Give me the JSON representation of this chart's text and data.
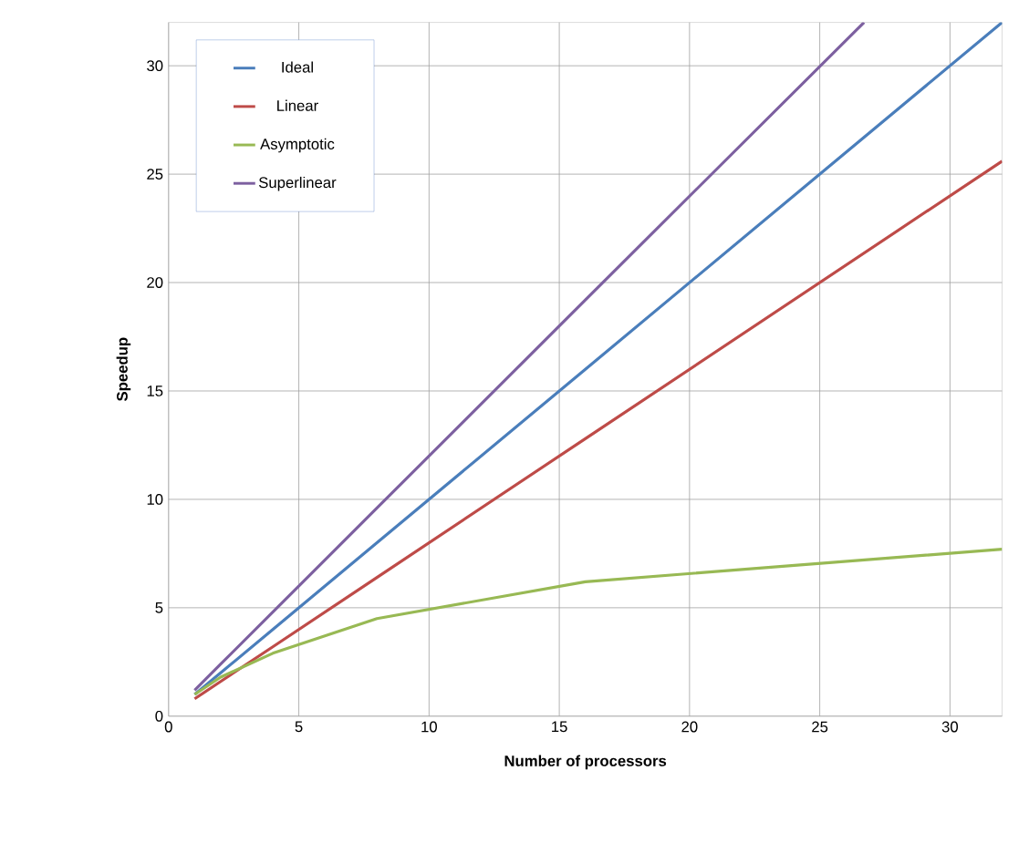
{
  "chart_data": {
    "type": "line",
    "xlabel": "Number of processors",
    "ylabel": "Speedup",
    "xlim": [
      0,
      32
    ],
    "ylim": [
      0,
      32
    ],
    "xticks": [
      0,
      5,
      10,
      15,
      20,
      25,
      30
    ],
    "yticks": [
      0,
      5,
      10,
      15,
      20,
      25,
      30
    ],
    "grid": true,
    "legend": "top left",
    "marker": "none",
    "line_style": "solid",
    "series": [
      {
        "name": "Ideal",
        "color": "#4a7ebb",
        "x": [
          1,
          2,
          4,
          8,
          16,
          32
        ],
        "values": [
          1,
          2,
          4,
          8,
          16,
          32
        ]
      },
      {
        "name": "Linear",
        "color": "#be4b48",
        "x": [
          1,
          2,
          4,
          8,
          16,
          32
        ],
        "values": [
          0.8,
          1.6,
          3.2,
          6.4,
          12.8,
          25.6
        ]
      },
      {
        "name": "Asymptotic",
        "color": "#98b954",
        "x": [
          1,
          2,
          4,
          8,
          16,
          32
        ],
        "values": [
          1,
          1.8,
          2.9,
          4.5,
          6.2,
          7.7
        ]
      },
      {
        "name": "Superlinear",
        "color": "#7d60a0",
        "x": [
          1,
          2,
          4,
          8,
          16,
          26.7
        ],
        "values": [
          1.2,
          2.4,
          4.8,
          9.6,
          19.2,
          32
        ]
      }
    ]
  }
}
